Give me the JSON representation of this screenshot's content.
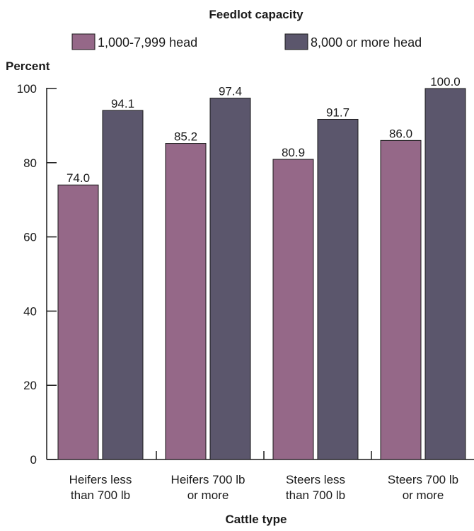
{
  "chart_data": {
    "type": "bar",
    "title": "Feedlot capacity",
    "ylabel": "Percent",
    "xlabel": "Cattle type",
    "ylim": [
      0,
      100
    ],
    "yticks": [
      0,
      20,
      40,
      60,
      80,
      100
    ],
    "grid": false,
    "legend_position": "top",
    "categories": [
      [
        "Heifers less",
        "than 700 lb"
      ],
      [
        "Heifers 700 lb",
        "or more"
      ],
      [
        "Steers less",
        "than 700 lb"
      ],
      [
        "Steers 700 lb",
        "or more"
      ]
    ],
    "series": [
      {
        "name": "1,000-7,999 head",
        "color": "#956888",
        "values": [
          74.0,
          85.2,
          80.9,
          86.0
        ],
        "labels": [
          "74.0",
          "85.2",
          "80.9",
          "86.0"
        ]
      },
      {
        "name": "8,000 or more head",
        "color": "#5b566c",
        "values": [
          94.1,
          97.4,
          91.7,
          100.0
        ],
        "labels": [
          "94.1",
          "97.4",
          "91.7",
          "100.0"
        ]
      }
    ]
  }
}
